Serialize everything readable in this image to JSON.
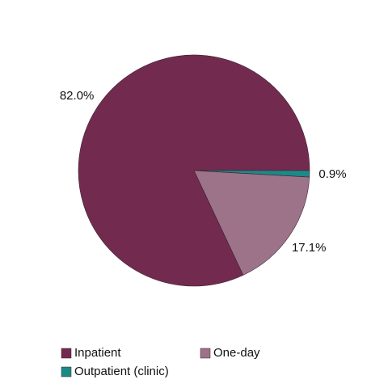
{
  "chart_data": {
    "type": "pie",
    "categories": [
      "Inpatient",
      "Outpatient (clinic)",
      "One-day"
    ],
    "values": [
      82.0,
      0.9,
      17.1
    ],
    "value_labels": [
      "82.0%",
      "0.9%",
      "17.1%"
    ],
    "colors": [
      "#722b4f",
      "#1a8a87",
      "#9c7389"
    ],
    "legend": "bottom"
  }
}
